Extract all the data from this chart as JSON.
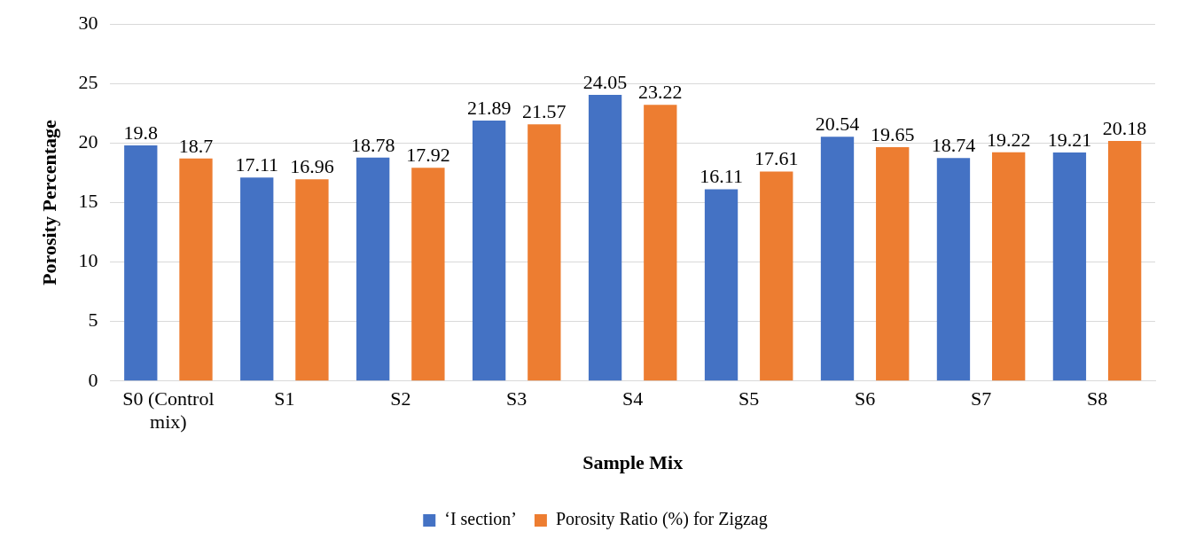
{
  "chart_data": {
    "type": "bar",
    "xlabel": "Sample Mix",
    "ylabel": "Porosity Percentage",
    "categories": [
      "S0 (Control mix)",
      "S1",
      "S2",
      "S3",
      "S4",
      "S5",
      "S6",
      "S7",
      "S8"
    ],
    "series": [
      {
        "name": "‘I section’",
        "color": "#4472c4",
        "values": [
          19.8,
          17.11,
          18.78,
          21.89,
          24.05,
          16.11,
          20.54,
          18.74,
          19.21
        ]
      },
      {
        "name": "Porosity Ratio (%) for Zigzag",
        "color": "#ed7d31",
        "values": [
          18.7,
          16.96,
          17.92,
          21.57,
          23.22,
          17.61,
          19.65,
          19.22,
          20.18
        ]
      }
    ],
    "ylim": [
      0,
      30
    ],
    "yticks": [
      0,
      5,
      10,
      15,
      20,
      25,
      30
    ],
    "grid": "y",
    "legend": "bottom",
    "data_labels": true
  }
}
